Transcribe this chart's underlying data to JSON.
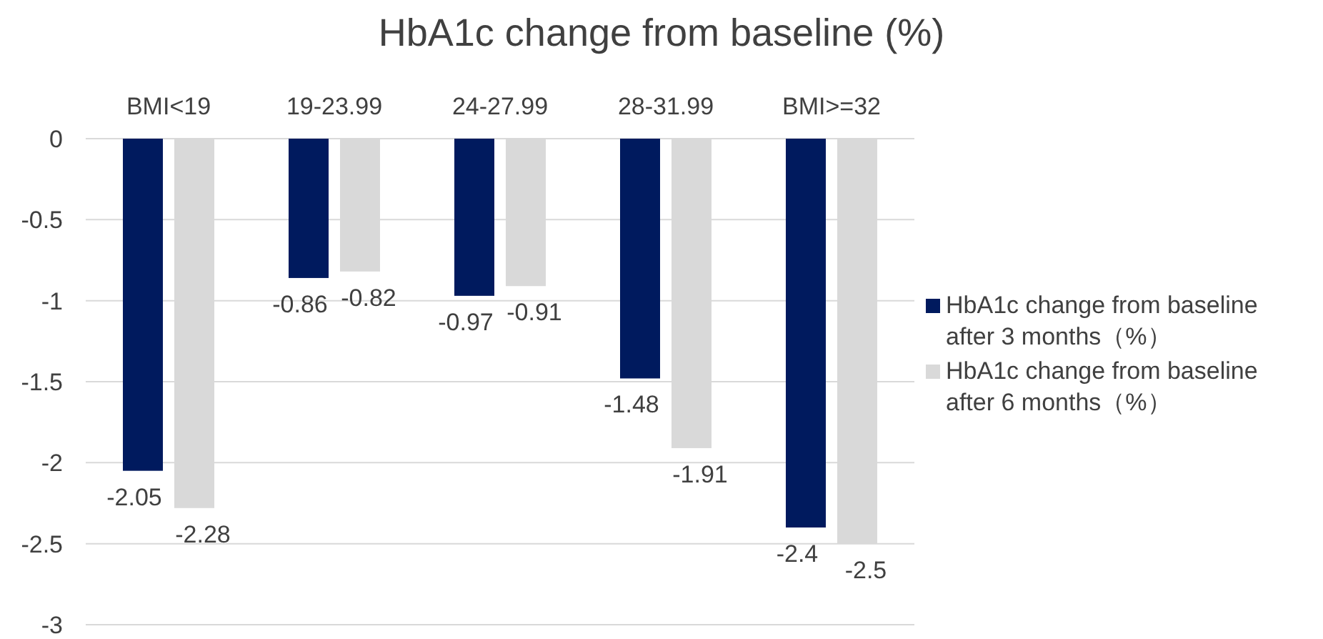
{
  "chart_data": {
    "type": "bar",
    "title": "HbA1c change from baseline (%)",
    "categories": [
      "BMI<19",
      "19-23.99",
      "24-27.99",
      "28-31.99",
      "BMI>=32"
    ],
    "series": [
      {
        "name": "HbA1c change from baseline after 3 months（%）",
        "color": "#001a5e",
        "values": [
          -2.05,
          -0.86,
          -0.97,
          -1.48,
          -2.4
        ]
      },
      {
        "name": "HbA1c change from baseline after 6 months（%）",
        "color": "#d9d9d9",
        "values": [
          -2.28,
          -0.82,
          -0.91,
          -1.91,
          -2.5
        ]
      }
    ],
    "ylim": [
      -3,
      0
    ],
    "yticks": [
      0,
      -0.5,
      -1,
      -1.5,
      -2,
      -2.5,
      -3
    ],
    "grid": "y",
    "legend": "right",
    "data_labels": true
  }
}
